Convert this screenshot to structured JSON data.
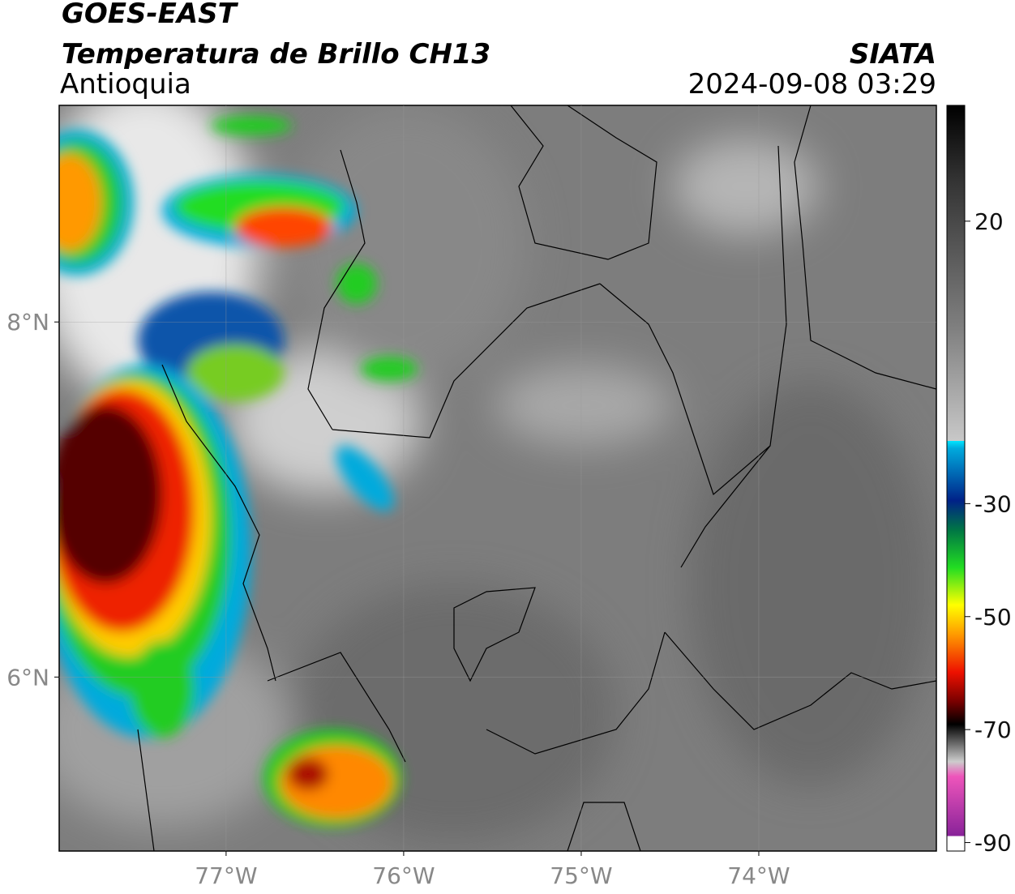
{
  "header": {
    "title": "GOES-EAST",
    "subtitle": "Temperatura de Brillo CH13",
    "region": "Antioquia",
    "source": "SIATA",
    "timestamp": "2024-09-08 03:29"
  },
  "map": {
    "xlim": [
      -77.94,
      -73.0
    ],
    "ylim": [
      5.02,
      9.22
    ],
    "xticks": [
      {
        "value": -77,
        "label": "77°W"
      },
      {
        "value": -76,
        "label": "76°W"
      },
      {
        "value": -75,
        "label": "75°W"
      },
      {
        "value": -74,
        "label": "74°W"
      }
    ],
    "yticks": [
      {
        "value": 8,
        "label": "8°N"
      },
      {
        "value": 6,
        "label": "6°N"
      }
    ],
    "grid": true
  },
  "colorbar": {
    "lim": [
      -91.5,
      40.5
    ],
    "ticks": [
      20,
      -30,
      -50,
      -70,
      -90
    ]
  }
}
